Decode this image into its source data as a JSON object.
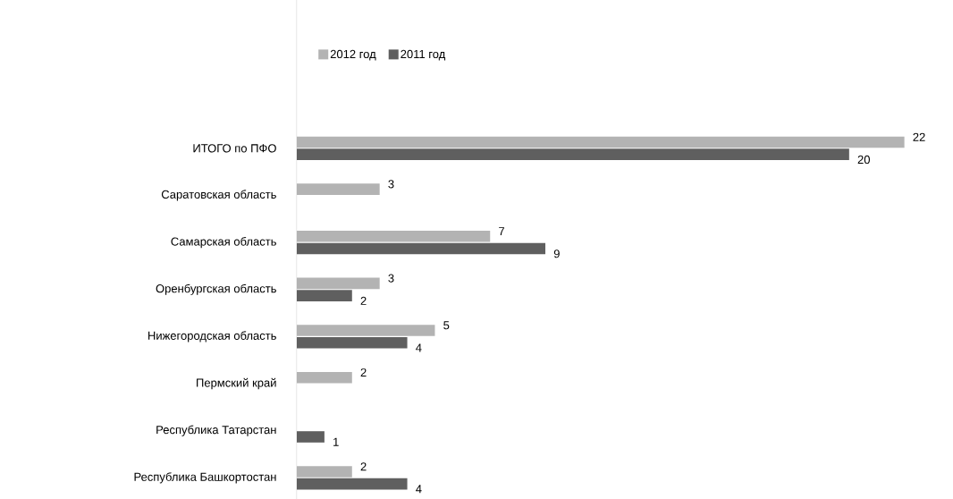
{
  "chart_data": {
    "type": "bar",
    "orientation": "horizontal",
    "data_labels": true,
    "legend": "top",
    "categories": [
      "ИТОГО по ПФО",
      "Саратовская область",
      "Самарская область",
      "Оренбургская область",
      "Нижегородская область",
      "Пермский край",
      "Республика Татарстан",
      "Республика Башкортостан"
    ],
    "series": [
      {
        "name": "2012 год",
        "color": "#b3b3b3",
        "values": [
          22,
          3,
          7,
          3,
          5,
          2,
          null,
          2
        ]
      },
      {
        "name": "2011 год",
        "color": "#5f5f5f",
        "values": [
          20,
          null,
          9,
          2,
          4,
          null,
          1,
          4
        ]
      }
    ]
  }
}
